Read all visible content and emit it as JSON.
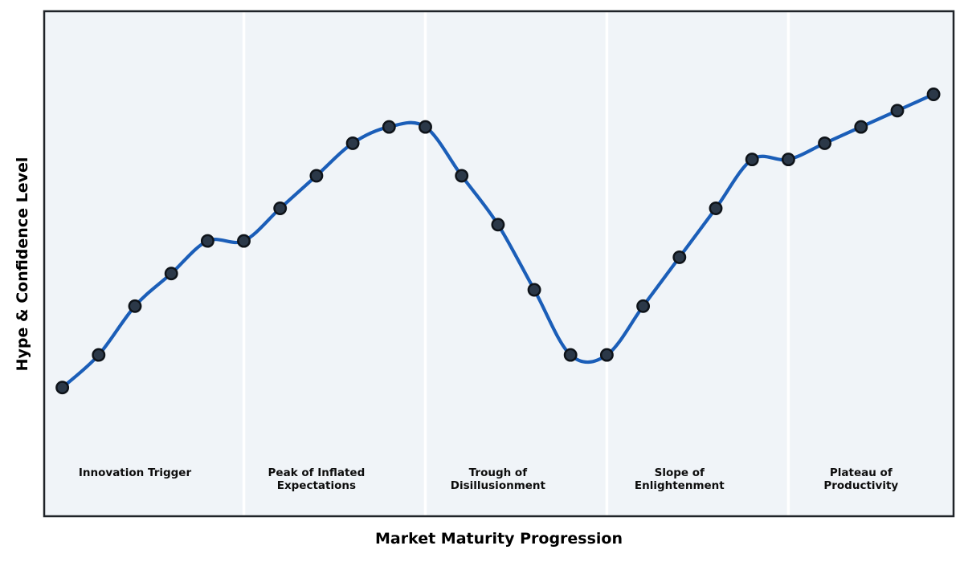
{
  "chart_data": {
    "type": "line",
    "title": "",
    "xlabel": "Market Maturity Progression",
    "ylabel": "Hype & Confidence Level",
    "x": [
      1,
      2,
      3,
      4,
      5,
      6,
      7,
      8,
      9,
      10,
      11,
      12,
      13,
      14,
      15,
      16,
      17,
      18,
      19,
      20,
      21,
      22,
      23,
      24,
      25
    ],
    "y": [
      10,
      12,
      15,
      17,
      19,
      19,
      21,
      23,
      25,
      26,
      26,
      23,
      20,
      16,
      12,
      12,
      15,
      18,
      21,
      24,
      24,
      25,
      26,
      27,
      28
    ],
    "xlim": [
      0.5,
      25.55
    ],
    "ylim": [
      2.1,
      33.1
    ],
    "grid": false,
    "legend": "none",
    "ticks": "none",
    "smoothing": "cubic-spline",
    "marker": "circle",
    "phase_boundaries_x": [
      6,
      11,
      16,
      21
    ],
    "phases": [
      {
        "label": "Innovation Trigger",
        "lines": [
          "Innovation Trigger"
        ],
        "center_x": 3
      },
      {
        "label": "Peak of Inflated Expectations",
        "lines": [
          "Peak of Inflated",
          "Expectations"
        ],
        "center_x": 8
      },
      {
        "label": "Trough of Disillusionment",
        "lines": [
          "Trough of",
          "Disillusionment"
        ],
        "center_x": 13
      },
      {
        "label": "Slope of Enlightenment",
        "lines": [
          "Slope of",
          "Enlightenment"
        ],
        "center_x": 18
      },
      {
        "label": "Plateau of Productivity",
        "lines": [
          "Plateau of",
          "Productivity"
        ],
        "center_x": 23
      }
    ],
    "colors": {
      "line": "#1b5eb8",
      "marker_fill": "#2b3848",
      "marker_edge": "#0e1319",
      "band_fill": "#f0f4f8",
      "divider": "#ffffff",
      "frame": "#1f2328",
      "label_text": "#0d0d0d",
      "axis_label_text": "#000000",
      "page_bg": "#ffffff"
    }
  }
}
